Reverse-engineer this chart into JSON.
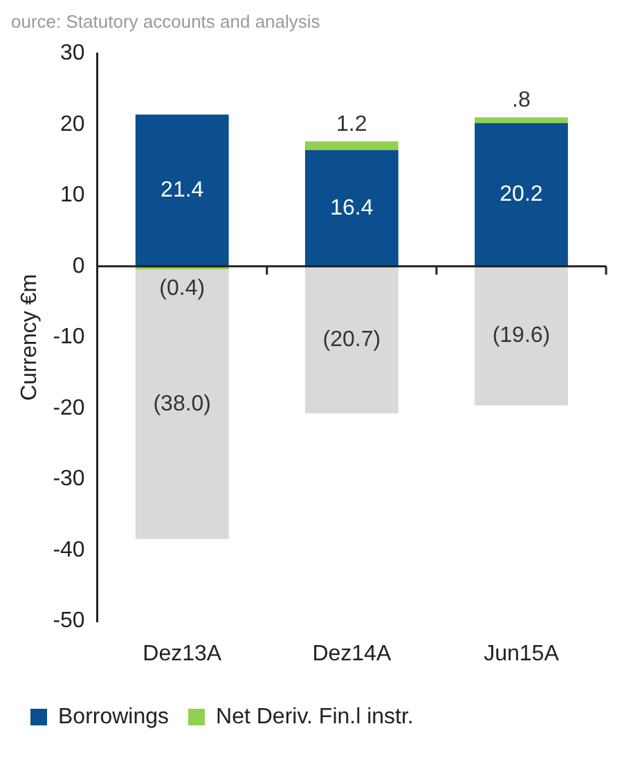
{
  "chart_data": {
    "type": "bar",
    "stacked": true,
    "ylabel": "Currency €m",
    "annotations": [
      "ource: Statutory accounts and analysis"
    ],
    "categories": [
      "Dez13A",
      "Dez14A",
      "Jun15A"
    ],
    "series": [
      {
        "name": "Borrowings",
        "color": "#0b4f8f",
        "values": [
          21.4,
          16.4,
          20.2
        ],
        "value_labels": [
          "21.4",
          "16.4",
          "20.2"
        ]
      },
      {
        "name": "Net Deriv. Fin.l instr.",
        "color": "#92d050",
        "values": [
          -0.4,
          1.2,
          0.8
        ],
        "value_labels": [
          "(0.4)",
          "1.2",
          ".8"
        ]
      },
      {
        "color": "#d9d9d9",
        "values": [
          -38.0,
          -20.7,
          -19.6
        ],
        "value_labels": [
          "(38.0)",
          "(20.7)",
          "(19.6)"
        ]
      }
    ],
    "ylim": [
      -50,
      30
    ],
    "yticks": [
      -50,
      -40,
      -30,
      -20,
      -10,
      0,
      10,
      20,
      30
    ],
    "legend": "bottom"
  }
}
